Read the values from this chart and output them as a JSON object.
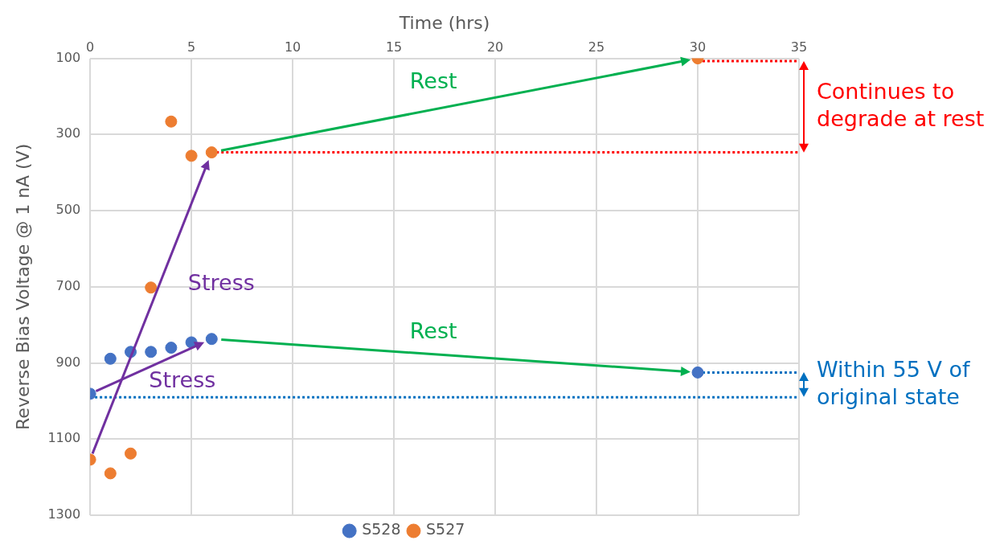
{
  "chart_data": {
    "type": "scatter",
    "xlabel": "Time (hrs)",
    "ylabel": "Reverse Bias Voltage @ 1 nA (V)",
    "xlim": [
      0,
      35
    ],
    "xticks": [
      0,
      5,
      10,
      15,
      20,
      25,
      30,
      35
    ],
    "ylim": [
      1300,
      100
    ],
    "yticks": [
      100,
      300,
      500,
      700,
      900,
      1100,
      1300
    ],
    "grid": true,
    "legend": "bottom",
    "series": [
      {
        "name": "S528",
        "color": "#4472c4",
        "marker": "circle",
        "x": [
          0,
          1,
          2,
          3,
          4,
          5,
          6,
          30
        ],
        "values": [
          981,
          889,
          871,
          871,
          860,
          846,
          837,
          925
        ]
      },
      {
        "name": "S527",
        "color": "#ed7d31",
        "marker": "circle",
        "x": [
          0,
          1,
          2,
          3,
          4,
          5,
          6,
          30
        ],
        "values": [
          1154,
          1190,
          1138,
          702,
          266,
          356,
          347,
          100
        ]
      },
      {
        "type": "line",
        "color": "#ff0000",
        "line_style": "dotted",
        "x": [
          30,
          35
        ],
        "values": [
          107,
          107
        ]
      },
      {
        "type": "line",
        "color": "#ff0000",
        "line_style": "dotted",
        "x": [
          6,
          35
        ],
        "values": [
          347,
          347
        ]
      },
      {
        "type": "line",
        "color": "#0070c0",
        "line_style": "dotted",
        "x": [
          30,
          35
        ],
        "values": [
          925,
          925
        ]
      },
      {
        "type": "line",
        "color": "#0070c0",
        "line_style": "dotted",
        "x": [
          0,
          35
        ],
        "values": [
          990,
          990
        ]
      }
    ],
    "annotations": [
      "Rest",
      "Stress",
      "Rest",
      "Stress",
      "Continues to degrade at rest",
      "Within 55 V of original state"
    ]
  }
}
